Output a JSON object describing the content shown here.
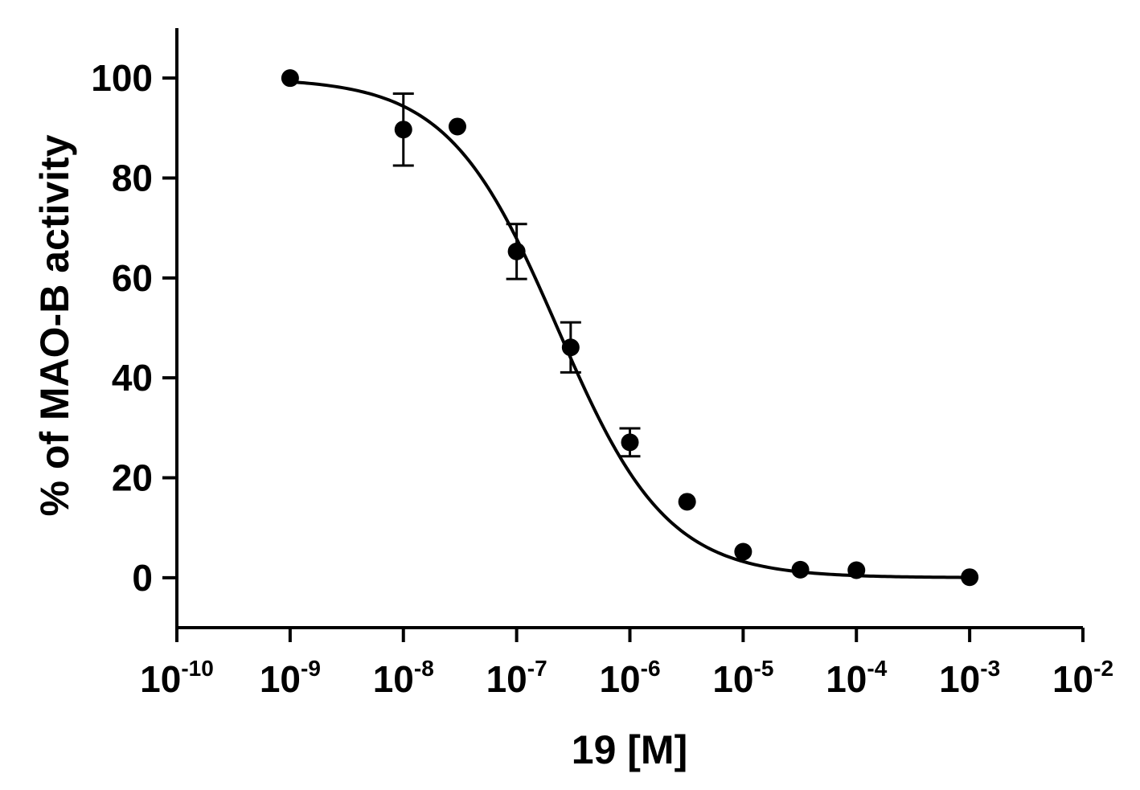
{
  "chart_data": {
    "type": "scatter",
    "title": "",
    "xlabel": "19 [M]",
    "ylabel": "% of MAO-B activity",
    "x_scale": "log",
    "xlim": [
      1e-10,
      0.01
    ],
    "ylim": [
      -10,
      110
    ],
    "x_tick_labels": [
      {
        "base": "10",
        "exp": "-10"
      },
      {
        "base": "10",
        "exp": "-9"
      },
      {
        "base": "10",
        "exp": "-8"
      },
      {
        "base": "10",
        "exp": "-7"
      },
      {
        "base": "10",
        "exp": "-6"
      },
      {
        "base": "10",
        "exp": "-5"
      },
      {
        "base": "10",
        "exp": "-4"
      },
      {
        "base": "10",
        "exp": "-3"
      },
      {
        "base": "10",
        "exp": "-2"
      }
    ],
    "y_tick_labels": [
      "0",
      "20",
      "40",
      "60",
      "80",
      "100"
    ],
    "grid": false,
    "series": [
      {
        "points": [
          {
            "x": 1e-09,
            "y": 100,
            "err": 0
          },
          {
            "x": 1e-08,
            "y": 89.7,
            "err": 7.2
          },
          {
            "x": 3e-08,
            "y": 90.3,
            "err": 0
          },
          {
            "x": 1e-07,
            "y": 65.3,
            "err": 5.5
          },
          {
            "x": 3e-07,
            "y": 46.1,
            "err": 5.0
          },
          {
            "x": 1e-06,
            "y": 27.1,
            "err": 2.8
          },
          {
            "x": 3.2e-06,
            "y": 15.2,
            "err": 0
          },
          {
            "x": 1e-05,
            "y": 5.2,
            "err": 0
          },
          {
            "x": 3.2e-05,
            "y": 1.6,
            "err": 0
          },
          {
            "x": 0.0001,
            "y": 1.5,
            "err": 0
          },
          {
            "x": 0.001,
            "y": 0.1,
            "err": 0
          }
        ],
        "fit": {
          "model": "sigmoidal",
          "top": 100,
          "bottom": 0,
          "log_ic50": -6.64,
          "hill_slope": -0.9,
          "x_range": [
            1e-09,
            0.001
          ]
        }
      }
    ],
    "colors": {
      "marks": "#000000"
    }
  }
}
